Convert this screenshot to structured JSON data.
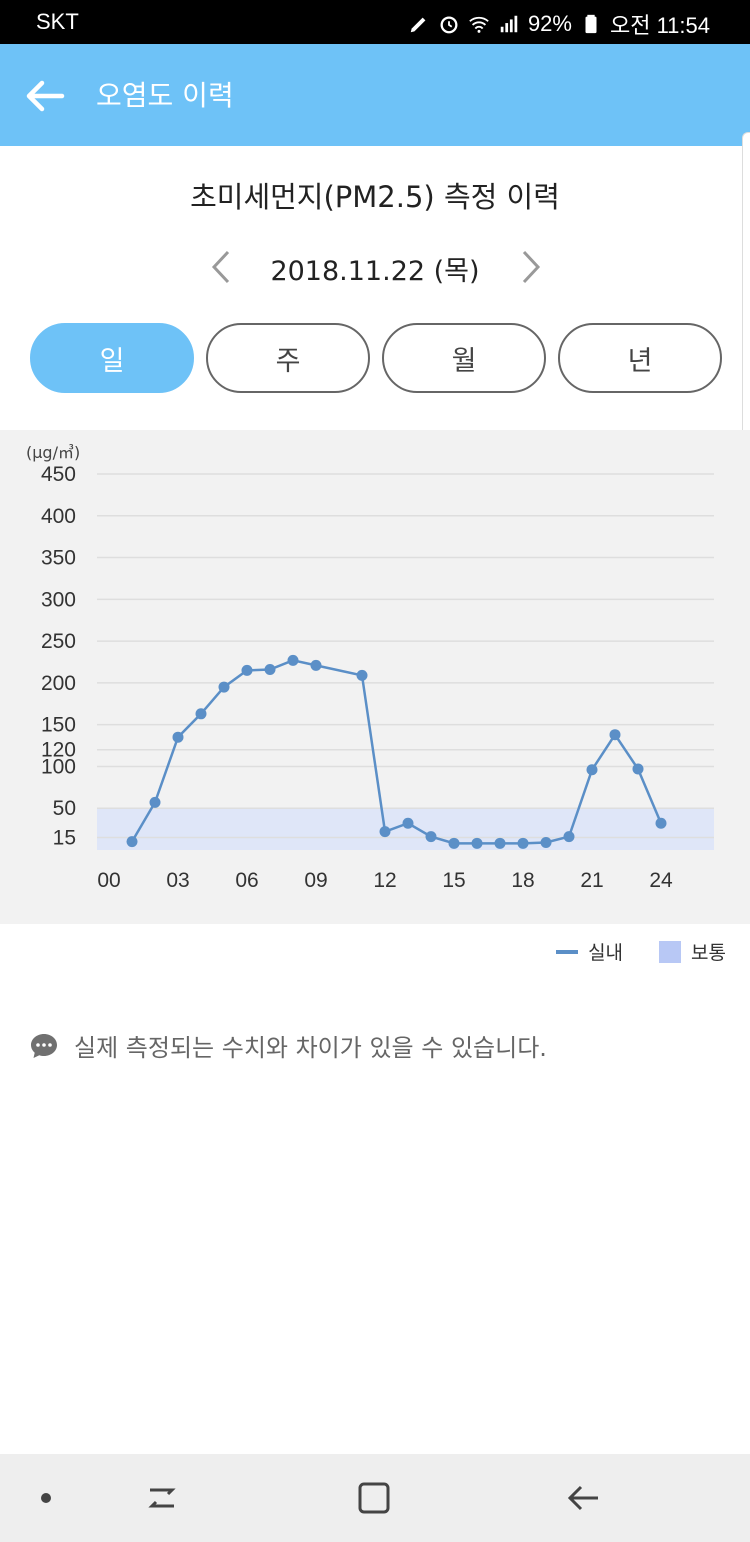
{
  "status_bar": {
    "carrier": "SKT",
    "battery": "92%",
    "time": "오전 11:54"
  },
  "app_bar": {
    "title": "오염도 이력"
  },
  "section": {
    "title": "초미세먼지(PM2.5) 측정 이력",
    "date": "2018.11.22 (목)",
    "tabs": [
      {
        "label": "일",
        "active": true
      },
      {
        "label": "주",
        "active": false
      },
      {
        "label": "월",
        "active": false
      },
      {
        "label": "년",
        "active": false
      }
    ]
  },
  "chart_data": {
    "type": "line",
    "unit_label": "(µg/㎥)",
    "y_ticks": [
      15,
      50,
      100,
      120,
      150,
      200,
      250,
      300,
      350,
      400,
      450
    ],
    "ylim": [
      0,
      450
    ],
    "x_ticks": [
      "00",
      "03",
      "06",
      "09",
      "12",
      "15",
      "18",
      "21",
      "24"
    ],
    "xlim": [
      0,
      26
    ],
    "band": {
      "name": "보통",
      "from": 0,
      "to": 50,
      "color": "#dfe6f8"
    },
    "series": [
      {
        "name": "실내",
        "color": "#5b8fc7",
        "x": [
          1,
          2,
          3,
          4,
          5,
          6,
          7,
          8,
          9,
          11,
          12,
          13,
          14,
          15,
          16,
          17,
          18,
          19,
          20,
          21,
          22,
          23,
          24
        ],
        "y": [
          10,
          57,
          135,
          163,
          195,
          215,
          216,
          227,
          221,
          209,
          22,
          32,
          16,
          8,
          8,
          8,
          8,
          9,
          16,
          96,
          138,
          97,
          32
        ]
      }
    ]
  },
  "legend": {
    "series_label": "실내",
    "band_label": "보통"
  },
  "notice": {
    "text": "실제 측정되는 수치와 차이가 있을 수 있습니다."
  },
  "colors": {
    "accent": "#6ec2f7",
    "line": "#5b8fc7",
    "band": "#dfe6f8"
  }
}
